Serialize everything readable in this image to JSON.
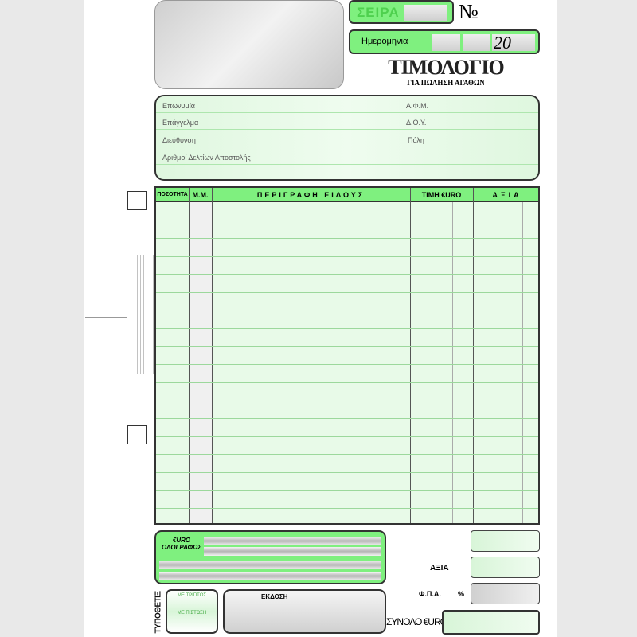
{
  "header": {
    "series_label": "ΣΕΙΡΑ",
    "number_label": "№",
    "date_label": "Ημερομηνια",
    "year_prefix": "20",
    "title": "ΤΙΜΟΛΟΓΙΟ",
    "subtitle": "ΓΙΑ ΠΩΛΗΣΗ ΑΓΑΘΩΝ"
  },
  "customer": {
    "name": "Επωνυμία",
    "vat": "Α.Φ.Μ.",
    "profession": "Επάγγελμα",
    "tax_office": "Δ.Ο.Υ.",
    "address": "Διεύθυνση",
    "city": "Πόλη",
    "delivery_notes": "Αριθμοί Δελτίων Αποστολής"
  },
  "table": {
    "columns": [
      "ΠΟΣΟΤΗΤΑ",
      "Μ.Μ.",
      "ΠΕΡΙΓΡΑΦΗ ΕΙΔΟΥΣ",
      "ΤΙΜΗ €URO",
      "ΑΞΙΑ"
    ]
  },
  "footer": {
    "words_label_1": "€URO",
    "words_label_2": "ΟΛΟΓΡΑΦΩΣ",
    "value_label": "ΑΞΙΑ",
    "vat_label": "Φ.Π.Α.",
    "percent": "%",
    "total_label": "ΣΥΝΟΛΟ €URO",
    "issue_label": "ΕΚΔΟΣΗ",
    "receiver_1": "ΜΕ ΤΡΙΠΤΟΣ",
    "receiver_2": "ΜΕ ΠΙΣΤΩΣΗ",
    "printer": "ΤΥΠΟΘΕΤΙΞ"
  }
}
